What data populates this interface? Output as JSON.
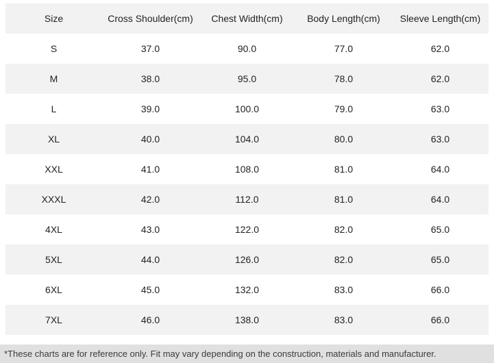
{
  "table": {
    "headers": [
      "Size",
      "Cross Shoulder(cm)",
      "Chest Width(cm)",
      "Body Length(cm)",
      "Sleeve Length(cm)"
    ],
    "rows": [
      [
        "S",
        "37.0",
        "90.0",
        "77.0",
        "62.0"
      ],
      [
        "M",
        "38.0",
        "95.0",
        "78.0",
        "62.0"
      ],
      [
        "L",
        "39.0",
        "100.0",
        "79.0",
        "63.0"
      ],
      [
        "XL",
        "40.0",
        "104.0",
        "80.0",
        "63.0"
      ],
      [
        "XXL",
        "41.0",
        "108.0",
        "81.0",
        "64.0"
      ],
      [
        "XXXL",
        "42.0",
        "112.0",
        "81.0",
        "64.0"
      ],
      [
        "4XL",
        "43.0",
        "122.0",
        "82.0",
        "65.0"
      ],
      [
        "5XL",
        "44.0",
        "126.0",
        "82.0",
        "65.0"
      ],
      [
        "6XL",
        "45.0",
        "132.0",
        "83.0",
        "66.0"
      ],
      [
        "7XL",
        "46.0",
        "138.0",
        "83.0",
        "66.0"
      ]
    ]
  },
  "footer": {
    "note": "*These charts are for reference only. Fit may vary depending on the construction, materials and manufacturer."
  },
  "colors": {
    "stripe_bg": "#f2f2f2",
    "footer_bg": "#e0e0e0",
    "text": "#222222",
    "footer_text": "#3a3a3a"
  },
  "chart_data": {
    "type": "table",
    "columns": [
      "Size",
      "Cross Shoulder(cm)",
      "Chest Width(cm)",
      "Body Length(cm)",
      "Sleeve Length(cm)"
    ],
    "rows": [
      [
        "S",
        37.0,
        90.0,
        77.0,
        62.0
      ],
      [
        "M",
        38.0,
        95.0,
        78.0,
        62.0
      ],
      [
        "L",
        39.0,
        100.0,
        79.0,
        63.0
      ],
      [
        "XL",
        40.0,
        104.0,
        80.0,
        63.0
      ],
      [
        "XXL",
        41.0,
        108.0,
        81.0,
        64.0
      ],
      [
        "XXXL",
        42.0,
        112.0,
        81.0,
        64.0
      ],
      [
        "4XL",
        43.0,
        122.0,
        82.0,
        65.0
      ],
      [
        "5XL",
        44.0,
        126.0,
        82.0,
        65.0
      ],
      [
        "6XL",
        45.0,
        132.0,
        83.0,
        66.0
      ],
      [
        "7XL",
        46.0,
        138.0,
        83.0,
        66.0
      ]
    ],
    "footnote": "*These charts are for reference only. Fit may vary depending on the construction, materials and manufacturer.",
    "layout": {
      "striped": true,
      "stripe_pattern": "header and every second data row shaded",
      "cell_alignment": "center"
    }
  }
}
